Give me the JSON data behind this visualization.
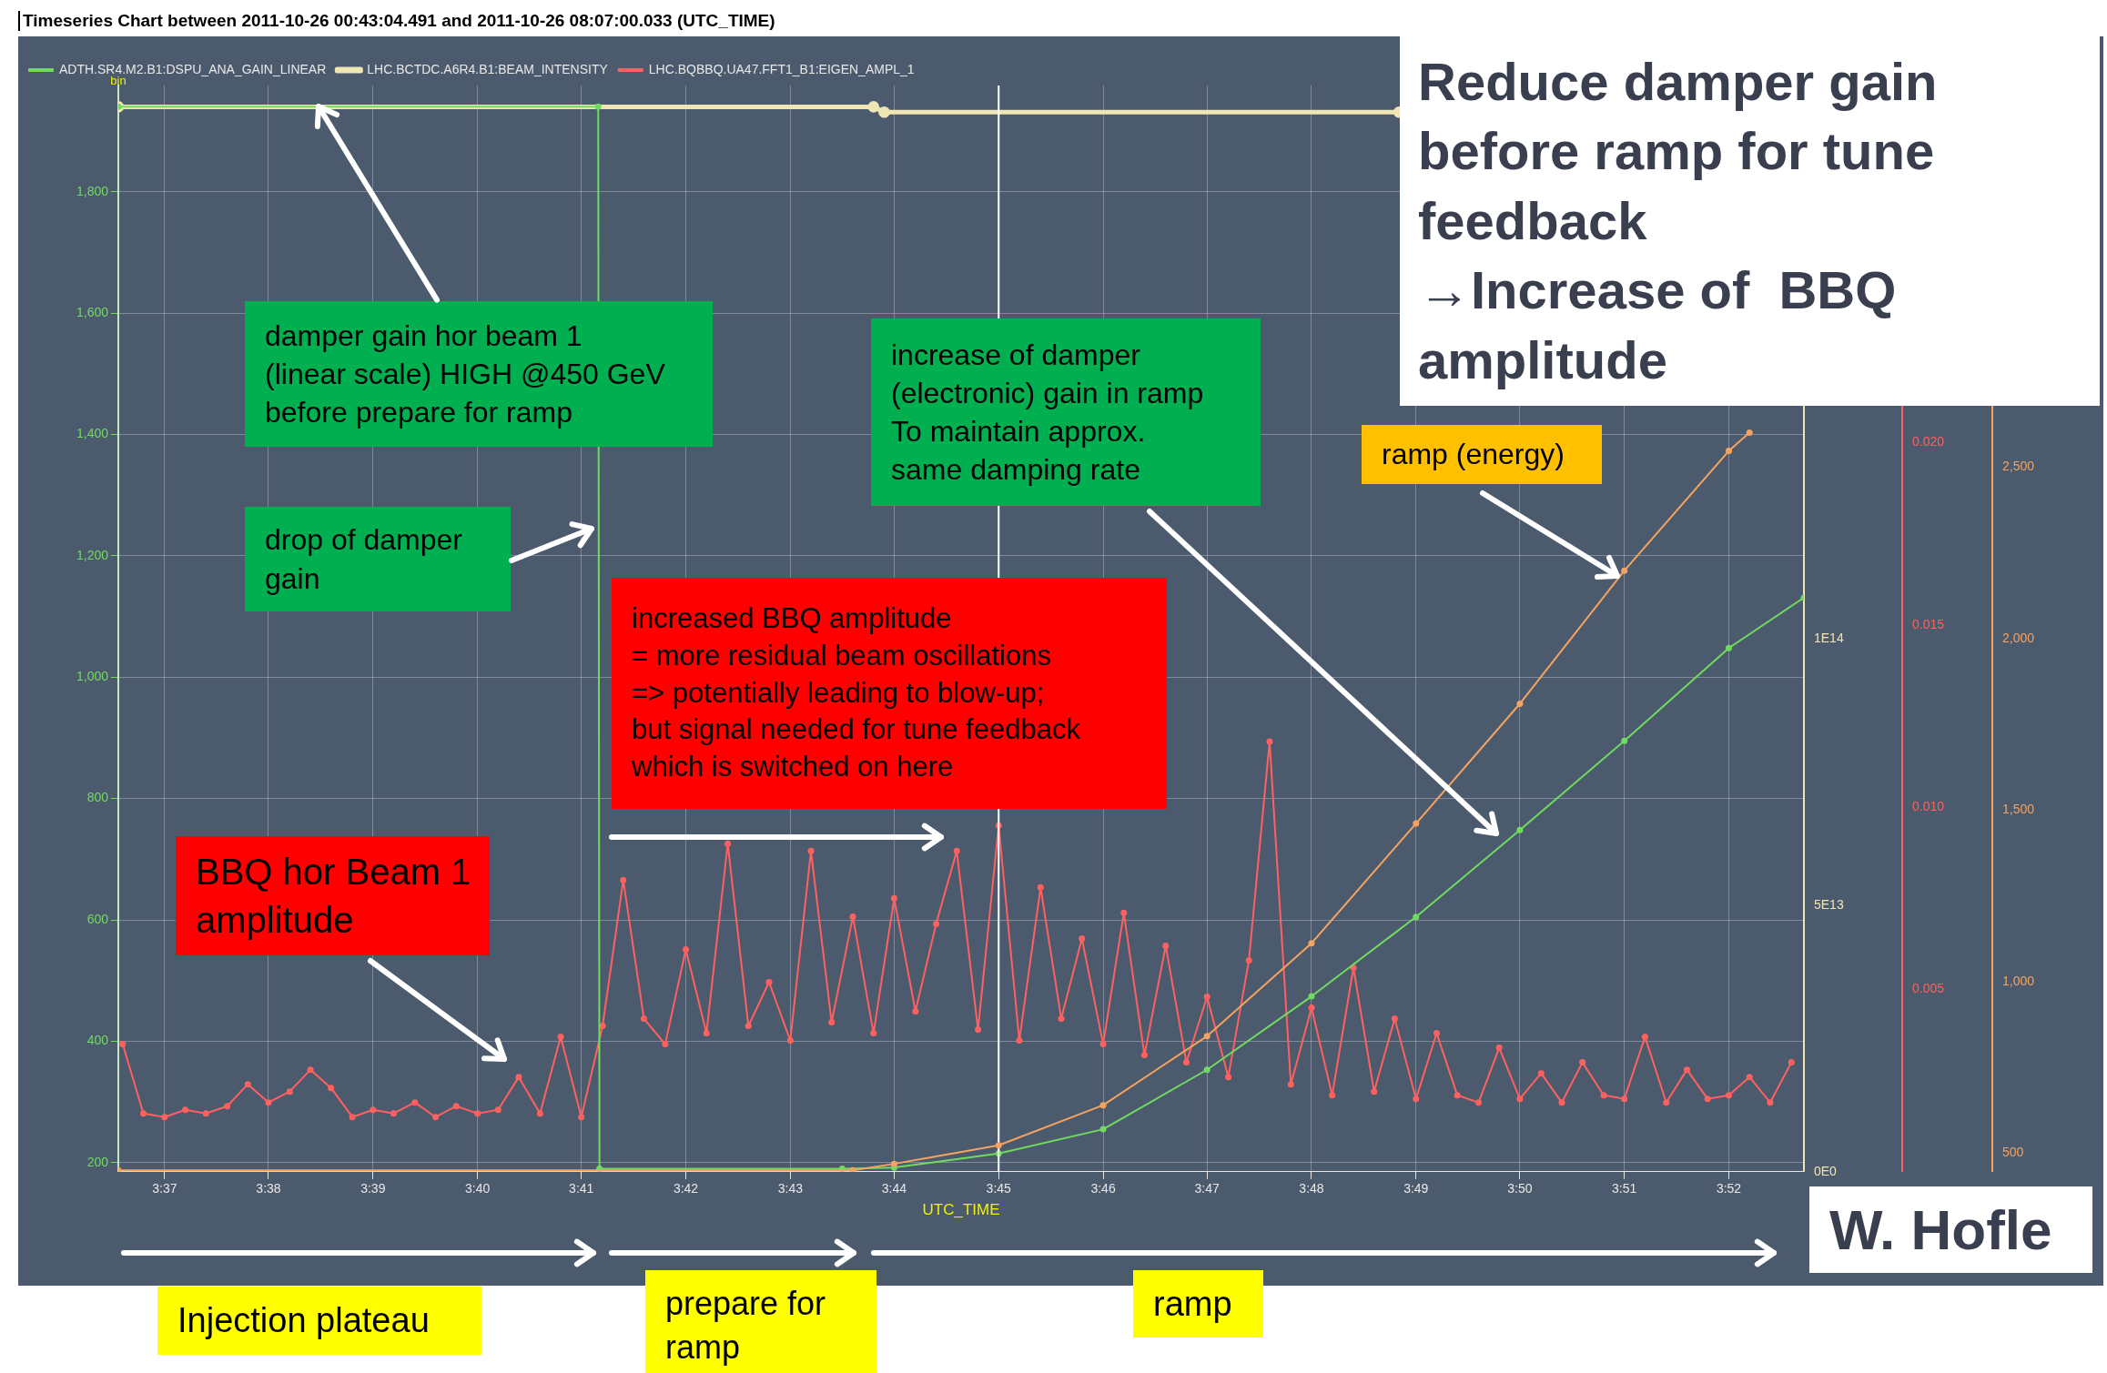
{
  "chart_data": [
    {
      "type": "line",
      "title": "Timeseries Chart between 2011-10-26 00:43:04.491 and 2011-10-26 08:07:00.033 (UTC_TIME)",
      "xlabel": "UTC_TIME",
      "ylabel": "bin",
      "legend": "top",
      "grid": true,
      "marker": "circle",
      "line_style": "solid",
      "xlim": [
        3.6093,
        3.8787
      ],
      "xticks": [
        {
          "value": 3.6167,
          "label": "3:37"
        },
        {
          "value": 3.6333,
          "label": "3:38"
        },
        {
          "value": 3.65,
          "label": "3:39"
        },
        {
          "value": 3.6667,
          "label": "3:40"
        },
        {
          "value": 3.6833,
          "label": "3:41"
        },
        {
          "value": 3.7,
          "label": "3:42"
        },
        {
          "value": 3.7167,
          "label": "3:43"
        },
        {
          "value": 3.7333,
          "label": "3:44"
        },
        {
          "value": 3.75,
          "label": "3:45"
        },
        {
          "value": 3.7667,
          "label": "3:46"
        },
        {
          "value": 3.7833,
          "label": "3:47"
        },
        {
          "value": 3.8,
          "label": "3:48"
        },
        {
          "value": 3.8167,
          "label": "3:49"
        },
        {
          "value": 3.8333,
          "label": "3:50"
        },
        {
          "value": 3.85,
          "label": "3:51"
        },
        {
          "value": 3.8667,
          "label": "3:52"
        }
      ],
      "ylim": [
        185,
        1975
      ],
      "yticks": [
        200,
        400,
        600,
        800,
        {
          "value": 1000,
          "label": "1,000"
        },
        {
          "value": 1200,
          "label": "1,200"
        },
        {
          "value": 1400,
          "label": "1,400"
        },
        {
          "value": 1600,
          "label": "1,600"
        },
        {
          "value": 1800,
          "label": "1,800"
        }
      ],
      "y2lim": [
        0,
        204000000000000.0
      ],
      "y2ticks": [
        {
          "value": 0,
          "label": "0E0"
        },
        {
          "value": 50000000000000.0,
          "label": "5E13"
        },
        {
          "value": 100000000000000.0,
          "label": "1E14"
        }
      ],
      "y3lim": [
        0,
        0.0298
      ],
      "y3ticks": [
        {
          "value": 0.005,
          "label": "0.005"
        },
        {
          "value": 0.01,
          "label": "0.010"
        },
        {
          "value": 0.015,
          "label": "0.015"
        },
        {
          "value": 0.02,
          "label": "0.020"
        }
      ],
      "ref_lines": [
        {
          "axis": "x",
          "value": 3.75,
          "color": "#ffffff"
        }
      ],
      "series": [
        {
          "name": "ADTH.SR4.M2.B1:DSPU_ANA_GAIN_LINEAR",
          "color": "#6fdc5f",
          "x": [
            3.6093,
            3.686,
            3.6862,
            3.725,
            3.7333,
            3.75,
            3.7667,
            3.7833,
            3.8,
            3.8167,
            3.8333,
            3.85,
            3.8667,
            3.8787
          ],
          "values": [
            1940,
            1940,
            190,
            190,
            192,
            215,
            255,
            353,
            474,
            605,
            748,
            895,
            1048,
            1131
          ]
        },
        {
          "name": "LHC.BCTDC.A6R4.B1:BEAM_INTENSITY",
          "color": "#f0e6b4",
          "axis": "y2",
          "x": [
            3.6093,
            3.73,
            3.7317,
            3.814
          ],
          "values": [
            200000000000000.0,
            200000000000000.0,
            199000000000000.0,
            199000000000000.0
          ]
        },
        {
          "name": "LHC.BQBBQ.UA47.FFT1_B1:EIGEN_AMPL_1",
          "color": "#ff6060",
          "axis": "y3",
          "x": [
            3.61,
            3.6133,
            3.6167,
            3.62,
            3.6233,
            3.6267,
            3.63,
            3.6333,
            3.6367,
            3.64,
            3.6433,
            3.6467,
            3.65,
            3.6533,
            3.6567,
            3.66,
            3.6633,
            3.6667,
            3.67,
            3.6733,
            3.6767,
            3.68,
            3.6833,
            3.6867,
            3.69,
            3.6933,
            3.6967,
            3.7,
            3.7033,
            3.7067,
            3.71,
            3.7133,
            3.7167,
            3.72,
            3.7233,
            3.7267,
            3.73,
            3.7333,
            3.7367,
            3.74,
            3.7433,
            3.7467,
            3.75,
            3.7533,
            3.7567,
            3.76,
            3.7633,
            3.7667,
            3.77,
            3.7733,
            3.7767,
            3.78,
            3.7833,
            3.7867,
            3.79,
            3.7933,
            3.7967,
            3.8,
            3.8033,
            3.8067,
            3.81,
            3.8133,
            3.8167,
            3.82,
            3.8233,
            3.8267,
            3.83,
            3.8333,
            3.8367,
            3.84,
            3.8433,
            3.8467,
            3.85,
            3.8533,
            3.8567,
            3.86,
            3.8633,
            3.8667,
            3.87,
            3.8733,
            3.8767
          ],
          "values": [
            0.0035,
            0.0016,
            0.0015,
            0.0017,
            0.0016,
            0.0018,
            0.0024,
            0.0019,
            0.0022,
            0.0028,
            0.0023,
            0.0015,
            0.0017,
            0.0016,
            0.0019,
            0.0015,
            0.0018,
            0.0016,
            0.0017,
            0.0026,
            0.0016,
            0.0037,
            0.0015,
            0.004,
            0.008,
            0.0042,
            0.0035,
            0.0061,
            0.0038,
            0.009,
            0.004,
            0.0052,
            0.0036,
            0.0088,
            0.0041,
            0.007,
            0.0038,
            0.0075,
            0.0044,
            0.0068,
            0.0088,
            0.0039,
            0.0095,
            0.0036,
            0.0078,
            0.0042,
            0.0064,
            0.0035,
            0.0071,
            0.0032,
            0.0062,
            0.003,
            0.0048,
            0.0026,
            0.0058,
            0.0118,
            0.0024,
            0.0045,
            0.0021,
            0.0056,
            0.0022,
            0.0042,
            0.002,
            0.0038,
            0.0021,
            0.0019,
            0.0034,
            0.002,
            0.0027,
            0.0019,
            0.003,
            0.0021,
            0.002,
            0.0037,
            0.0019,
            0.0028,
            0.002,
            0.0021,
            0.0026,
            0.0019,
            0.003
          ]
        }
      ],
      "annotations": [
        "Reduce damper gain\nbefore ramp for tune\nfeedback\n→Increase of  BBQ\namplitude",
        {
          "text": "damper gain hor beam 1\n(linear scale) HIGH @450 GeV\nbefore prepare for ramp",
          "x": 3.6413,
          "y": 1940
        },
        "drop of damper\ngain",
        "increase of damper\n(electronic) gain in ramp\nTo maintain approx.\nsame damping rate",
        "ramp (energy)",
        "increased BBQ amplitude\n= more residual beam oscillations\n=> potentially leading to blow-up;\nbut signal needed for tune feedback\nwhich is switched on here",
        "BBQ hor Beam 1\namplitude",
        "Injection plateau",
        "prepare for\nramp",
        "ramp",
        "W. Hofle"
      ]
    },
    {
      "type": "line",
      "marker": "circle",
      "line_style": "solid",
      "tick_labels": "y",
      "xlim": [
        3.6093,
        3.8787
      ],
      "ylim": [
        446,
        3612
      ],
      "yticks": [
        500,
        {
          "value": 1000,
          "label": "1,000"
        },
        {
          "value": 1500,
          "label": "1,500"
        },
        {
          "value": 2000,
          "label": "2,000"
        },
        {
          "value": 2500,
          "label": "2,500"
        }
      ],
      "series": [
        {
          "color": "#f4a460",
          "x": [
            3.6093,
            3.7267,
            3.7333,
            3.75,
            3.7667,
            3.7833,
            3.8,
            3.8167,
            3.8333,
            3.85,
            3.8667,
            3.87
          ],
          "values": [
            450,
            450,
            469,
            523,
            640,
            841,
            1112,
            1461,
            1810,
            2198,
            2547,
            2600
          ]
        }
      ]
    }
  ]
}
